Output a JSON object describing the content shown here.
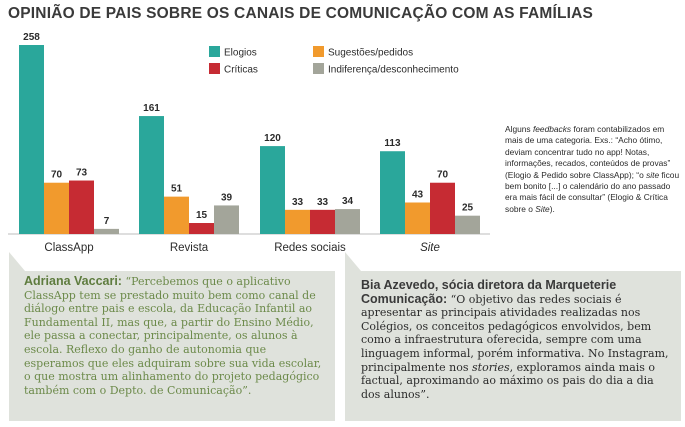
{
  "page": {
    "title": "OPINIÃO DE PAIS SOBRE OS CANAIS DE COMUNICAÇÃO COM AS FAMÍLIAS"
  },
  "colors": {
    "elogios": "#2aa79b",
    "sugestoes": "#f19a2d",
    "criticas": "#c62b33",
    "indiferenca": "#a3a59a",
    "quote_bg": "#dfe2dc",
    "accent_green": "#6c8a4a"
  },
  "chart_data": {
    "type": "bar",
    "title": "OPINIÃO DE PAIS SOBRE OS CANAIS DE COMUNICAÇÃO COM AS FAMÍLIAS",
    "categories": [
      "ClassApp",
      "Revista",
      "Redes sociais",
      "Site"
    ],
    "series": [
      {
        "name": "Elogios",
        "values": [
          258,
          161,
          120,
          113
        ]
      },
      {
        "name": "Sugestões/pedidos",
        "values": [
          70,
          51,
          33,
          43
        ]
      },
      {
        "name": "Críticas",
        "values": [
          73,
          15,
          33,
          70
        ]
      },
      {
        "name": "Indiferença/desconhecimento",
        "values": [
          7,
          39,
          34,
          25
        ]
      }
    ],
    "ylim": [
      0,
      258
    ],
    "grid": false,
    "legend_position": "top-center"
  },
  "note": {
    "part1": "Alguns ",
    "em1": "feedbacks",
    "part2": " foram contabilizados em mais de uma categoria. Exs.: “Acho ótimo, deviam concentrar tudo no app! Notas, informações, recados, conteúdos de provas” (Elogio & Pedido sobre ClassApp); “o ",
    "em2": "site",
    "part3": " ficou bem bonito [...] o calendário do ano passado era mais fácil de consultar” (Elogio & Crítica sobre o ",
    "em3": "Site",
    "part4": ")."
  },
  "quotes": [
    {
      "name": "Adriana Vaccari:",
      "text": " “Percebemos que o aplicativo ClassApp tem se prestado muito bem como canal de diálogo entre pais e escola, da Educação Infantil ao Fundamental II, mas que, a partir do Ensino Médio, ele passa a conectar, principalmente, os alunos à escola. Reflexo do ganho de autonomia que esperamos que eles adquiram sobre sua vida escolar, o que mostra um alinhamento do projeto pedagógico também com o Depto. de Comunicação”."
    },
    {
      "name": "Bia Azevedo, sócia diretora da Marqueterie Comunicação:",
      "text_a": " “O objetivo das redes sociais é apresentar as principais atividades realizadas nos Colégios, os conceitos pedagógicos envolvidos, bem como a infraestrutura oferecida, sempre com uma linguagem informal, porém informativa. No Instagram, principalmente nos ",
      "em": "stories",
      "text_b": ", exploramos ainda mais o factual, aproximando ao máximo os pais do dia a dia dos alunos”."
    }
  ]
}
